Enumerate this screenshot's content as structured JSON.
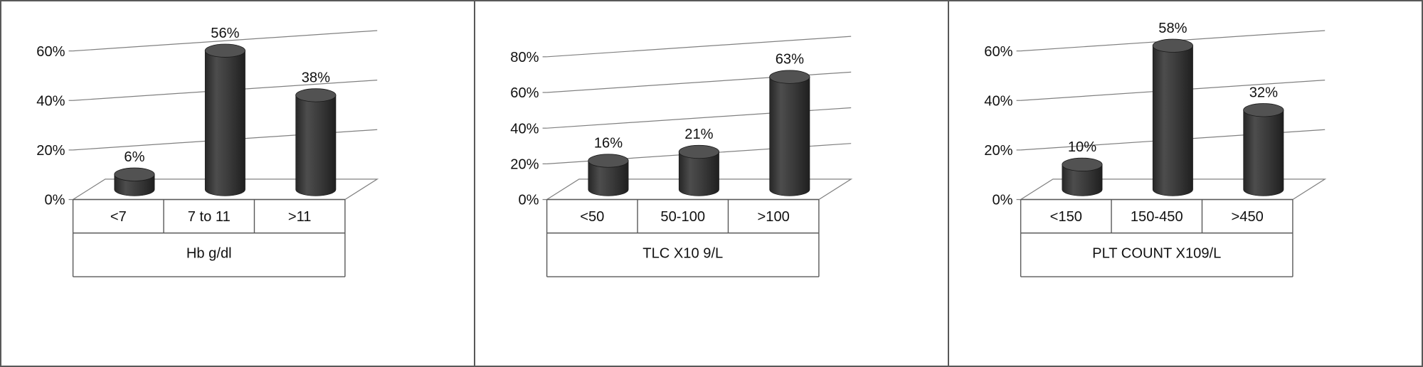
{
  "figure": {
    "background": "#ffffff",
    "border_color": "#595959",
    "gridline_color": "#808080",
    "table_line_color": "#595959",
    "bar_color": "#3a3a3a",
    "bar_top_color": "#525252",
    "text_color": "#111111"
  },
  "chart_data": [
    {
      "type": "bar",
      "style": "3d-cylinder",
      "title": "Hb g/dl",
      "categories": [
        "<7",
        "7 to 11",
        ">11"
      ],
      "values": [
        6,
        56,
        38
      ],
      "value_labels": [
        "6%",
        "56%",
        "38%"
      ],
      "ymax": 60,
      "yticks": [
        0,
        20,
        40,
        60
      ],
      "ytick_labels": [
        "0%",
        "20%",
        "40%",
        "60%"
      ],
      "xlabel": "Hb g/dl",
      "ylabel": "",
      "grid": true,
      "legend": false
    },
    {
      "type": "bar",
      "style": "3d-cylinder",
      "title": "TLC X10 9/L",
      "categories": [
        "<50",
        "50-100",
        ">100"
      ],
      "values": [
        16,
        21,
        63
      ],
      "value_labels": [
        "16%",
        "21%",
        "63%"
      ],
      "ymax": 80,
      "yticks": [
        0,
        20,
        40,
        60,
        80
      ],
      "ytick_labels": [
        "0%",
        "20%",
        "40%",
        "60%",
        "80%"
      ],
      "xlabel": "TLC X10 9/L",
      "ylabel": "",
      "grid": true,
      "legend": false
    },
    {
      "type": "bar",
      "style": "3d-cylinder",
      "title": "PLT COUNT X109/L",
      "categories": [
        "<150",
        "150-450",
        ">450"
      ],
      "values": [
        10,
        58,
        32
      ],
      "value_labels": [
        "10%",
        "58%",
        "32%"
      ],
      "ymax": 60,
      "yticks": [
        0,
        20,
        40,
        60
      ],
      "ytick_labels": [
        "0%",
        "20%",
        "40%",
        "60%"
      ],
      "xlabel": "PLT COUNT X109/L",
      "ylabel": "",
      "grid": true,
      "legend": false
    }
  ]
}
